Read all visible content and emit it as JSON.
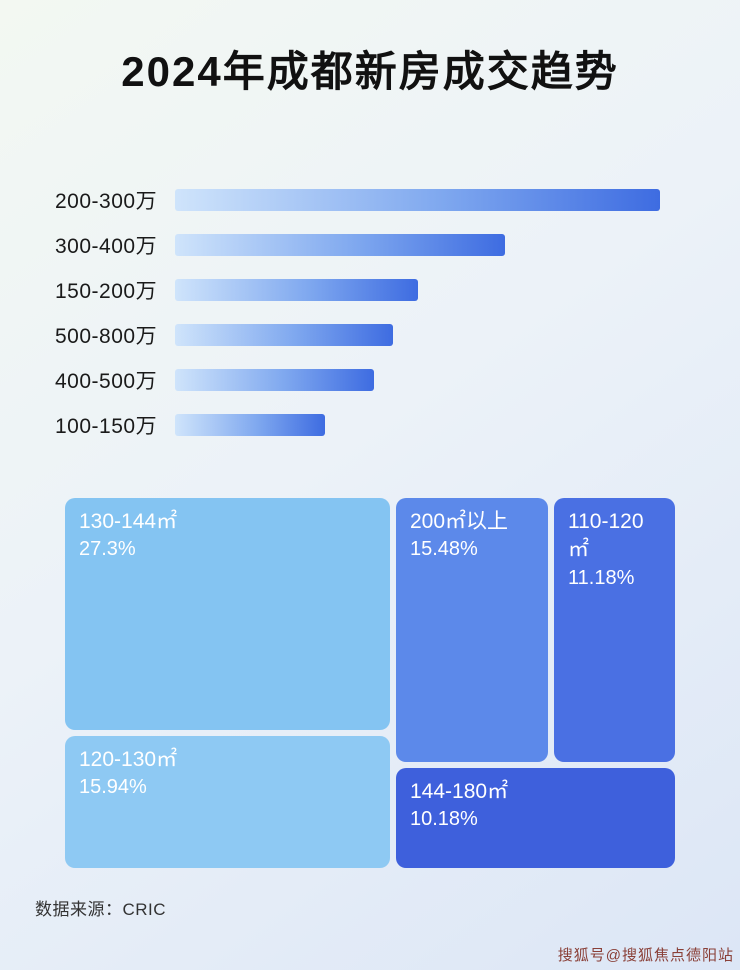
{
  "page": {
    "title": "2024年成都新房成交趋势",
    "source_label": "数据来源：CRIC",
    "watermark": "搜狐号@搜狐焦点德阳站"
  },
  "colors": {
    "background_start": "#f3f8f2",
    "background_end": "#dce6f6",
    "bar_gradient_start": "#cfe4fb",
    "bar_gradient_end": "#3e6ce1",
    "title_text": "#111111",
    "category_label_text": "#1a1a1a",
    "block_text": "#ffffff",
    "source_text": "#333333",
    "watermark_text": "#8a4038"
  },
  "chart_data": [
    {
      "type": "bar",
      "orientation": "horizontal",
      "title": "2024年成都新房成交趋势",
      "categories": [
        "200-300万",
        "300-400万",
        "150-200万",
        "500-800万",
        "400-500万",
        "100-150万"
      ],
      "values": [
        100,
        68,
        50,
        45,
        41,
        31
      ],
      "value_note": "bars carry no numeric labels in the image; values are estimated relative bar lengths as % of the longest bar",
      "xlabel": "",
      "ylabel": "",
      "grid": false,
      "legend": false
    },
    {
      "type": "treemap",
      "items": [
        {
          "label": "130-144㎡",
          "value": 27.3,
          "value_label": "27.3%",
          "color": "#84c4f2"
        },
        {
          "label": "120-130㎡",
          "value": 15.94,
          "value_label": "15.94%",
          "color": "#8ec9f3"
        },
        {
          "label": "200㎡以上",
          "value": 15.48,
          "value_label": "15.48%",
          "color": "#5c89ea"
        },
        {
          "label": "110-120㎡",
          "value": 11.18,
          "value_label": "11.18%",
          "color": "#4a70e3"
        },
        {
          "label": "144-180㎡",
          "value": 10.18,
          "value_label": "10.18%",
          "color": "#3e60dc"
        }
      ],
      "grid": false,
      "legend": false
    }
  ]
}
